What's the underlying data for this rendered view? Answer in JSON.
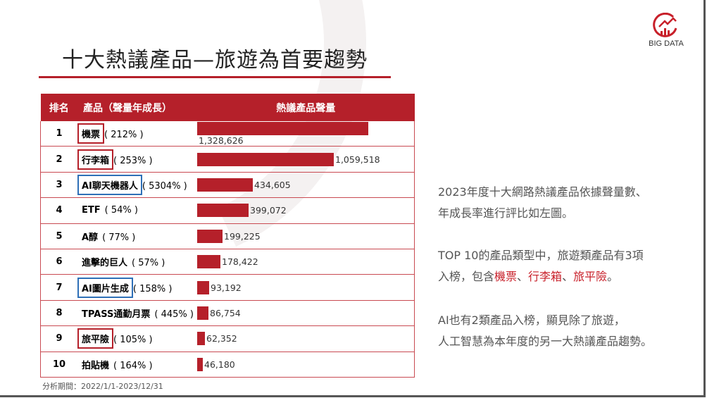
{
  "title": "十大熱議產品—旅遊為首要趨勢",
  "logo": {
    "text": "BIG DATA"
  },
  "table": {
    "headers": [
      "排名",
      "產品（聲量年成長）",
      "熱議產品聲量"
    ],
    "max_value": 1328626,
    "bar_color": "#b5202a",
    "rows": [
      {
        "rank": "1",
        "name": "機票",
        "growth": "( 212% )",
        "value": 1328626,
        "value_label": "1,328,626",
        "box": "red"
      },
      {
        "rank": "2",
        "name": "行李箱",
        "growth": "( 253% )",
        "value": 1059518,
        "value_label": "1,059,518",
        "box": "red"
      },
      {
        "rank": "3",
        "name": "AI聊天機器人",
        "growth": "( 5304% )",
        "value": 434605,
        "value_label": "434,605",
        "box": "blue"
      },
      {
        "rank": "4",
        "name": "ETF",
        "growth": "( 54% )",
        "value": 399072,
        "value_label": "399,072",
        "box": ""
      },
      {
        "rank": "5",
        "name": "A醇",
        "growth": "( 77% )",
        "value": 199225,
        "value_label": "199,225",
        "box": ""
      },
      {
        "rank": "6",
        "name": "進擊的巨人",
        "growth": "( 57% )",
        "value": 178422,
        "value_label": "178,422",
        "box": ""
      },
      {
        "rank": "7",
        "name": "AI圖片生成",
        "growth": "( 158% )",
        "value": 93192,
        "value_label": "93,192",
        "box": "blue"
      },
      {
        "rank": "8",
        "name": "TPASS通勤月票",
        "growth": "( 445% )",
        "value": 86754,
        "value_label": "86,754",
        "box": ""
      },
      {
        "rank": "9",
        "name": "旅平險",
        "growth": "( 105% )",
        "value": 62352,
        "value_label": "62,352",
        "box": "red"
      },
      {
        "rank": "10",
        "name": "拍貼機",
        "growth": "( 164% )",
        "value": 46180,
        "value_label": "46,180",
        "box": ""
      }
    ]
  },
  "footer": "分析期間：2022/1/1-2023/12/31",
  "side": {
    "p1": [
      "2023年度十大網路熱議產品依據聲量數、",
      "年成長率進行評比如左圖。"
    ],
    "p2a": "TOP 10的產品類型中，旅遊類產品有3項",
    "p2b": {
      "pre": "入榜，包含",
      "a": "機票",
      "sep1": "、",
      "b": "行李箱",
      "sep2": "、",
      "c": "旅平險",
      "post": "。"
    },
    "p3": [
      "AI也有2類產品入榜，顯見除了旅遊，",
      "人工智慧為本年度的另一大熱議產品趨勢。"
    ],
    "highlight_color": "#c8202a"
  }
}
